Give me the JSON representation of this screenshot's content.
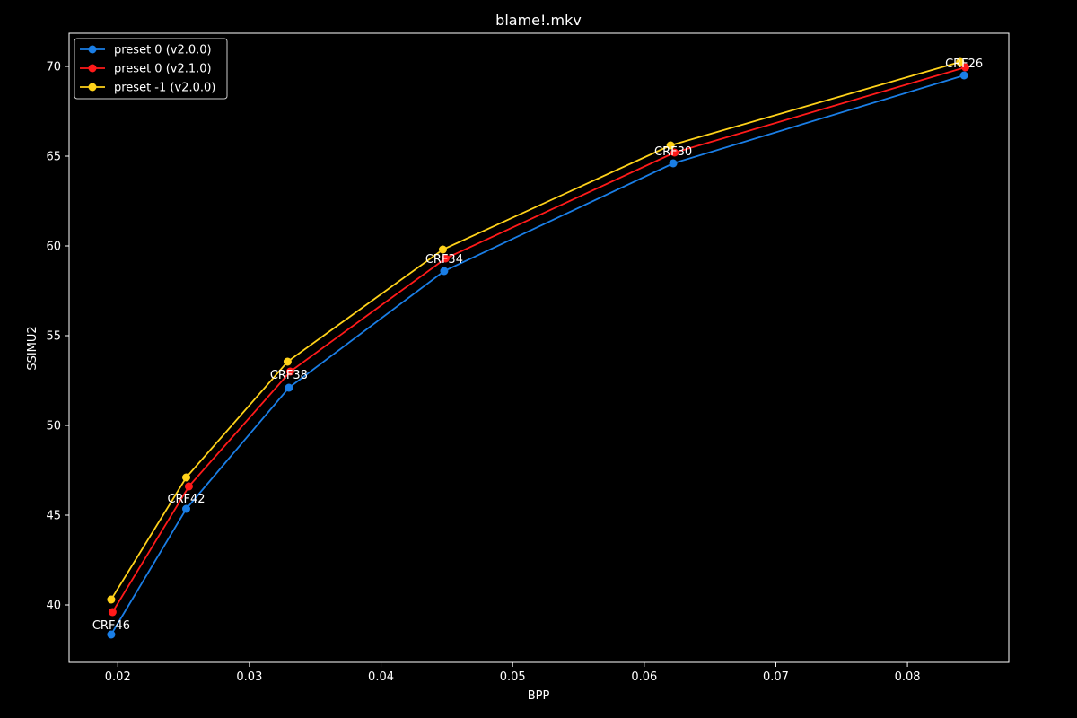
{
  "chart_data": {
    "type": "line",
    "title": "blame!.mkv",
    "xlabel": "BPP",
    "ylabel": "SSIMU2",
    "xlim": [
      0.0163,
      0.0877
    ],
    "ylim": [
      36.8,
      71.85
    ],
    "xticks": [
      0.02,
      0.03,
      0.04,
      0.05,
      0.06,
      0.07,
      0.08
    ],
    "xtick_labels": [
      "0.02",
      "0.03",
      "0.04",
      "0.05",
      "0.06",
      "0.07",
      "0.08"
    ],
    "yticks": [
      40,
      45,
      50,
      55,
      60,
      65,
      70
    ],
    "ytick_labels": [
      "40",
      "45",
      "50",
      "55",
      "60",
      "65",
      "70"
    ],
    "grid": false,
    "legend_position": "top-left",
    "background": "#000000",
    "series": [
      {
        "name": "preset 0 (v2.0.0)",
        "color": "#1a7ee6",
        "x": [
          0.0195,
          0.0252,
          0.033,
          0.0448,
          0.0622,
          0.0843
        ],
        "y": [
          38.35,
          45.35,
          52.1,
          58.6,
          64.6,
          69.5
        ]
      },
      {
        "name": "preset 0 (v2.1.0)",
        "color": "#ff1a1a",
        "x": [
          0.0196,
          0.0254,
          0.0331,
          0.0449,
          0.0623,
          0.0844
        ],
        "y": [
          39.6,
          46.6,
          53.0,
          59.3,
          65.2,
          69.95
        ]
      },
      {
        "name": "preset -1 (v2.0.0)",
        "color": "#ffd21a",
        "x": [
          0.0195,
          0.0252,
          0.0329,
          0.0447,
          0.062,
          0.084
        ],
        "y": [
          40.3,
          47.1,
          53.55,
          59.8,
          65.6,
          70.25
        ]
      }
    ],
    "annotations": [
      {
        "text": "CRF46",
        "x": 0.0195,
        "y": 38.9
      },
      {
        "text": "CRF42",
        "x": 0.0252,
        "y": 45.95
      },
      {
        "text": "CRF38",
        "x": 0.033,
        "y": 52.85
      },
      {
        "text": "CRF34",
        "x": 0.0448,
        "y": 59.3
      },
      {
        "text": "CRF30",
        "x": 0.0622,
        "y": 65.3
      },
      {
        "text": "CRF26",
        "x": 0.0843,
        "y": 70.2
      }
    ]
  }
}
